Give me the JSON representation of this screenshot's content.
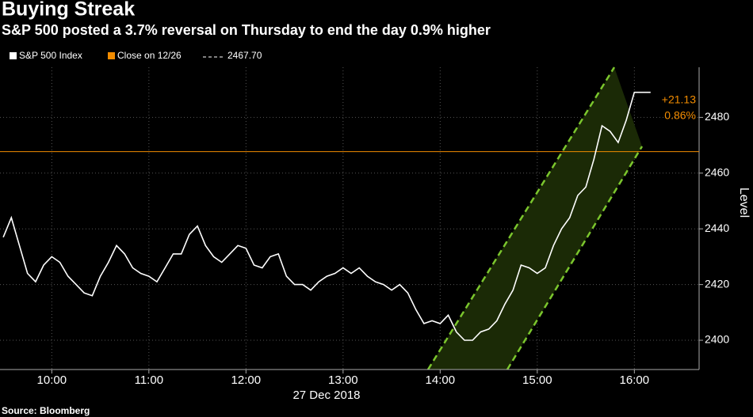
{
  "chart_data": {
    "type": "line",
    "title": "Buying Streak",
    "subtitle": "S&P 500 posted a 3.7% reversal on Thursday to end the day 0.9% higher",
    "x_label": "27 Dec 2018",
    "y_label": "Level",
    "source": "Source: Bloomberg",
    "x": [
      "09:30",
      "09:35",
      "09:40",
      "09:45",
      "09:50",
      "09:55",
      "10:00",
      "10:05",
      "10:10",
      "10:15",
      "10:20",
      "10:25",
      "10:30",
      "10:35",
      "10:40",
      "10:45",
      "10:50",
      "10:55",
      "11:00",
      "11:05",
      "11:10",
      "11:15",
      "11:20",
      "11:25",
      "11:30",
      "11:35",
      "11:40",
      "11:45",
      "11:50",
      "11:55",
      "12:00",
      "12:05",
      "12:10",
      "12:15",
      "12:20",
      "12:25",
      "12:30",
      "12:35",
      "12:40",
      "12:45",
      "12:50",
      "12:55",
      "13:00",
      "13:05",
      "13:10",
      "13:15",
      "13:20",
      "13:25",
      "13:30",
      "13:35",
      "13:40",
      "13:45",
      "13:50",
      "13:55",
      "14:00",
      "14:05",
      "14:10",
      "14:15",
      "14:20",
      "14:25",
      "14:30",
      "14:35",
      "14:40",
      "14:45",
      "14:50",
      "14:55",
      "15:00",
      "15:05",
      "15:10",
      "15:15",
      "15:20",
      "15:25",
      "15:30",
      "15:35",
      "15:40",
      "15:45",
      "15:50",
      "15:55",
      "16:00",
      "16:05",
      "16:10"
    ],
    "series": [
      {
        "name": "S&P 500 Index",
        "color": "#ffffff",
        "values": [
          2437,
          2444,
          2434,
          2424,
          2421,
          2427,
          2430,
          2428,
          2423,
          2420,
          2417,
          2416,
          2423,
          2428,
          2434,
          2431,
          2426,
          2424,
          2423,
          2421,
          2426,
          2431,
          2431,
          2438,
          2441,
          2434,
          2430,
          2428,
          2431,
          2434,
          2433,
          2427,
          2426,
          2430,
          2431,
          2423,
          2420,
          2420,
          2418,
          2421,
          2423,
          2424,
          2426,
          2424,
          2426,
          2423,
          2421,
          2420,
          2418,
          2420,
          2417,
          2411,
          2406,
          2407,
          2406,
          2409,
          2403,
          2400,
          2400,
          2403,
          2404,
          2407,
          2413,
          2418,
          2427,
          2426,
          2424,
          2426,
          2434,
          2440,
          2444,
          2452,
          2455,
          2465,
          2477,
          2475,
          2471,
          2479,
          2489,
          2489,
          2489
        ]
      }
    ],
    "reference_line": {
      "name": "Close on 12/26",
      "value": 2467.7,
      "value_label": "2467.70",
      "color": "#f28c00"
    },
    "annotations": [
      "+21.13",
      "0.86%"
    ],
    "xlim": [
      "09:28",
      "16:40"
    ],
    "xticks": [
      "10:00",
      "11:00",
      "12:00",
      "13:00",
      "14:00",
      "15:00",
      "16:00"
    ],
    "ylim": [
      2389.5,
      2498
    ],
    "yticks": [
      2400,
      2420,
      2440,
      2460,
      2480
    ],
    "grid": true
  }
}
